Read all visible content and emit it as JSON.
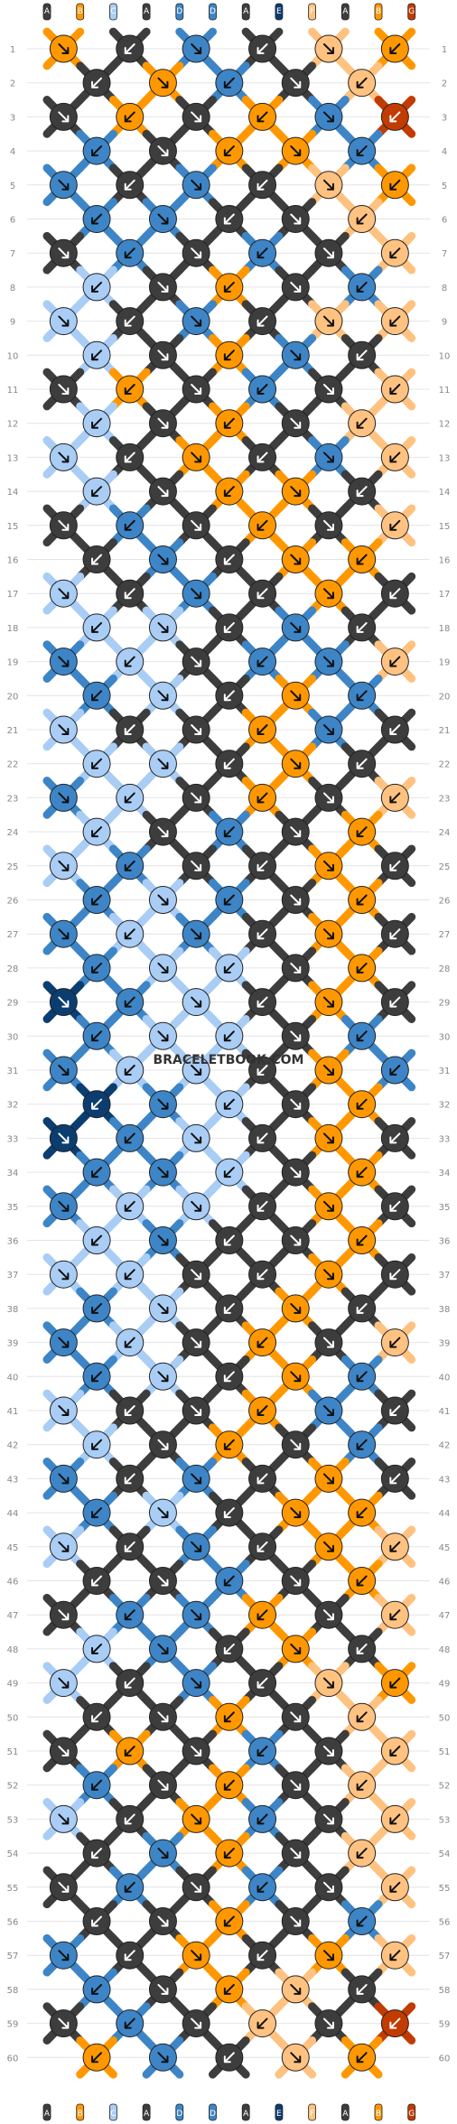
{
  "watermark": "BRACELETBOOK.COM",
  "row_count": 60,
  "string_count": 12,
  "colors": {
    "A": "#3d3d3d",
    "B": "#ff9800",
    "C": "#a9cdf5",
    "D": "#3d85c6",
    "E": "#0b3d70",
    "F": "#ffc280",
    "G": "#c23b00"
  },
  "strings_top": [
    "A",
    "B",
    "C",
    "A",
    "D",
    "D",
    "A",
    "E",
    "F",
    "A",
    "B",
    "G"
  ],
  "strings_bottom": [
    "A",
    "B",
    "C",
    "A",
    "D",
    "D",
    "A",
    "E",
    "F",
    "A",
    "B",
    "G"
  ],
  "pattern_knot_colors": [
    [
      "B",
      "A",
      "D",
      "A",
      "F",
      "B"
    ],
    [
      "A",
      "B",
      "D",
      "A",
      "F",
      "B"
    ],
    [
      "A",
      "B",
      "A",
      "B",
      "D",
      "G"
    ],
    [
      "D",
      "A",
      "B",
      "B",
      "D",
      "F"
    ],
    [
      "D",
      "A",
      "D",
      "A",
      "F",
      "B"
    ],
    [
      "D",
      "D",
      "A",
      "A",
      "F",
      "F"
    ],
    [
      "A",
      "D",
      "A",
      "D",
      "A",
      "F"
    ],
    [
      "C",
      "A",
      "B",
      "A",
      "D",
      "F"
    ],
    [
      "C",
      "A",
      "D",
      "A",
      "F",
      "F"
    ],
    [
      "C",
      "A",
      "B",
      "D",
      "A",
      "F"
    ],
    [
      "A",
      "B",
      "A",
      "D",
      "A",
      "F"
    ],
    [
      "C",
      "A",
      "B",
      "A",
      "F",
      "F"
    ],
    [
      "C",
      "A",
      "B",
      "A",
      "D",
      "F"
    ],
    [
      "C",
      "A",
      "B",
      "B",
      "A",
      "F"
    ],
    [
      "A",
      "D",
      "A",
      "B",
      "A",
      "F"
    ],
    [
      "A",
      "D",
      "A",
      "B",
      "B",
      "A"
    ],
    [
      "C",
      "A",
      "D",
      "A",
      "B",
      "A"
    ],
    [
      "C",
      "C",
      "A",
      "D",
      "A",
      "F"
    ],
    [
      "D",
      "C",
      "A",
      "D",
      "D",
      "F"
    ],
    [
      "D",
      "C",
      "A",
      "B",
      "D",
      "A"
    ],
    [
      "C",
      "A",
      "A",
      "B",
      "D",
      "A"
    ],
    [
      "C",
      "C",
      "A",
      "B",
      "A",
      "F"
    ],
    [
      "D",
      "C",
      "A",
      "B",
      "A",
      "F"
    ],
    [
      "C",
      "A",
      "D",
      "A",
      "B",
      "A"
    ],
    [
      "C",
      "D",
      "A",
      "A",
      "B",
      "A"
    ],
    [
      "D",
      "C",
      "D",
      "A",
      "B",
      "A"
    ],
    [
      "D",
      "C",
      "D",
      "A",
      "B",
      "A"
    ],
    [
      "D",
      "C",
      "C",
      "A",
      "B",
      "A"
    ],
    [
      "E",
      "D",
      "C",
      "A",
      "B",
      "A"
    ],
    [
      "D",
      "C",
      "C",
      "A",
      "D",
      "A"
    ],
    [
      "D",
      "C",
      "C",
      "A",
      "B",
      "D"
    ],
    [
      "E",
      "D",
      "C",
      "A",
      "B",
      "A"
    ],
    [
      "E",
      "D",
      "C",
      "A",
      "B",
      "A"
    ],
    [
      "D",
      "D",
      "C",
      "A",
      "B",
      "A"
    ],
    [
      "D",
      "C",
      "C",
      "A",
      "B",
      "A"
    ],
    [
      "C",
      "D",
      "A",
      "A",
      "B",
      "A"
    ],
    [
      "C",
      "C",
      "A",
      "A",
      "B",
      "A"
    ],
    [
      "D",
      "C",
      "A",
      "B",
      "A",
      "F"
    ],
    [
      "D",
      "C",
      "A",
      "B",
      "A",
      "F"
    ],
    [
      "D",
      "C",
      "A",
      "B",
      "D",
      "A"
    ],
    [
      "C",
      "A",
      "A",
      "B",
      "D",
      "A"
    ],
    [
      "C",
      "A",
      "B",
      "A",
      "D",
      "A"
    ],
    [
      "D",
      "A",
      "D",
      "A",
      "B",
      "A"
    ],
    [
      "D",
      "C",
      "A",
      "B",
      "B",
      "F"
    ],
    [
      "C",
      "A",
      "D",
      "A",
      "B",
      "F"
    ],
    [
      "A",
      "A",
      "D",
      "A",
      "B",
      "A"
    ],
    [
      "A",
      "D",
      "D",
      "B",
      "A",
      "F"
    ],
    [
      "C",
      "D",
      "A",
      "B",
      "A",
      "F"
    ],
    [
      "C",
      "A",
      "D",
      "A",
      "F",
      "B"
    ],
    [
      "A",
      "A",
      "B",
      "A",
      "F",
      "B"
    ],
    [
      "A",
      "B",
      "A",
      "D",
      "A",
      "F"
    ],
    [
      "D",
      "A",
      "B",
      "A",
      "F",
      "B"
    ],
    [
      "C",
      "A",
      "B",
      "D",
      "A",
      "F"
    ],
    [
      "A",
      "D",
      "B",
      "A",
      "F",
      "B"
    ],
    [
      "A",
      "D",
      "A",
      "D",
      "A",
      "F"
    ],
    [
      "A",
      "A",
      "B",
      "A",
      "D",
      "B"
    ],
    [
      "D",
      "A",
      "B",
      "A",
      "B",
      "F"
    ],
    [
      "D",
      "A",
      "B",
      "F",
      "A",
      "B"
    ],
    [
      "A",
      "D",
      "A",
      "F",
      "A",
      "G"
    ],
    [
      "B",
      "D",
      "A",
      "F",
      "B",
      "A"
    ]
  ]
}
